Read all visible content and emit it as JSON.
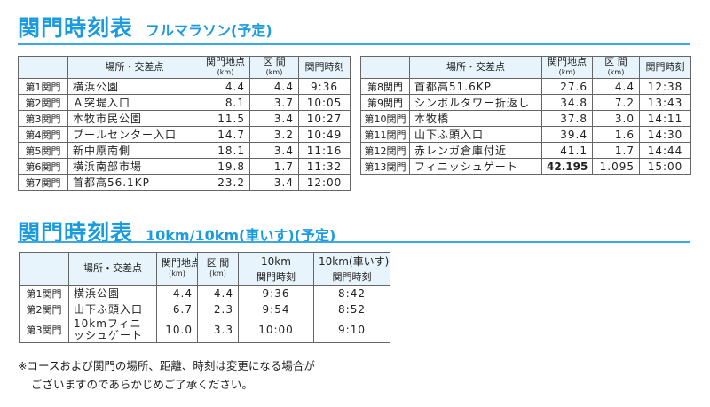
{
  "full": {
    "title": "関門時刻表",
    "subtitle": "フルマラソン(予定)",
    "headers": {
      "place": "場所・交差点",
      "point": "関門地点",
      "section": "区 間",
      "unit": "(km)",
      "time": "関門時刻"
    },
    "rows": [
      {
        "gate": "第1関門",
        "place": "横浜公園",
        "point": "4.4",
        "section": "4.4",
        "time": "9:36"
      },
      {
        "gate": "第2関門",
        "place": "Ａ突堤入口",
        "point": "8.1",
        "section": "3.7",
        "time": "10:05"
      },
      {
        "gate": "第3関門",
        "place": "本牧市民公園",
        "point": "11.5",
        "section": "3.4",
        "time": "10:27"
      },
      {
        "gate": "第4関門",
        "place": "プールセンター入口",
        "point": "14.7",
        "section": "3.2",
        "time": "10:49"
      },
      {
        "gate": "第5関門",
        "place": "新中原南側",
        "point": "18.1",
        "section": "3.4",
        "time": "11:16"
      },
      {
        "gate": "第6関門",
        "place": "横浜南部市場",
        "point": "19.8",
        "section": "1.7",
        "time": "11:32"
      },
      {
        "gate": "第7関門",
        "place": "首都高56.1KP",
        "point": "23.2",
        "section": "3.4",
        "time": "12:00"
      },
      {
        "gate": "第8関門",
        "place": "首都高51.6KP",
        "point": "27.6",
        "section": "4.4",
        "time": "12:38"
      },
      {
        "gate": "第9関門",
        "place": "シンボルタワー折返し",
        "point": "34.8",
        "section": "7.2",
        "time": "13:43"
      },
      {
        "gate": "第10関門",
        "place": "本牧橋",
        "point": "37.8",
        "section": "3.0",
        "time": "14:11"
      },
      {
        "gate": "第11関門",
        "place": "山下ふ頭入口",
        "point": "39.4",
        "section": "1.6",
        "time": "14:30"
      },
      {
        "gate": "第12関門",
        "place": "赤レンガ倉庫付近",
        "point": "41.1",
        "section": "1.7",
        "time": "14:44"
      },
      {
        "gate": "第13関門",
        "place": "フィニッシュゲート",
        "point": "42.195",
        "section": "1.095",
        "time": "15:00"
      }
    ]
  },
  "tenk": {
    "title": "関門時刻表",
    "subtitle": "10km/10km(車いす)(予定)",
    "headers": {
      "place": "場所・交差点",
      "point": "関門地点",
      "section": "区 間",
      "unit": "(km)",
      "cat1": "10km",
      "cat2": "10km(車いす)",
      "time": "関門時刻"
    },
    "rows": [
      {
        "gate": "第1関門",
        "place": "横浜公園",
        "point": "4.4",
        "section": "4.4",
        "time1": "9:36",
        "time2": "8:42"
      },
      {
        "gate": "第2関門",
        "place": "山下ふ頭入口",
        "point": "6.7",
        "section": "2.3",
        "time1": "9:54",
        "time2": "8:52"
      },
      {
        "gate": "第3関門",
        "place": "10kmフィニッシュゲート",
        "point": "10.0",
        "section": "3.3",
        "time1": "10:00",
        "time2": "9:10"
      }
    ]
  },
  "note": {
    "line1": "※コースおよび関門の場所、距離、時刻は変更になる場合が",
    "line2": "ございますのであらかじめご了承ください。"
  },
  "colors": {
    "accent": "#1a9be0",
    "header_bg": "#e8f4fb"
  }
}
